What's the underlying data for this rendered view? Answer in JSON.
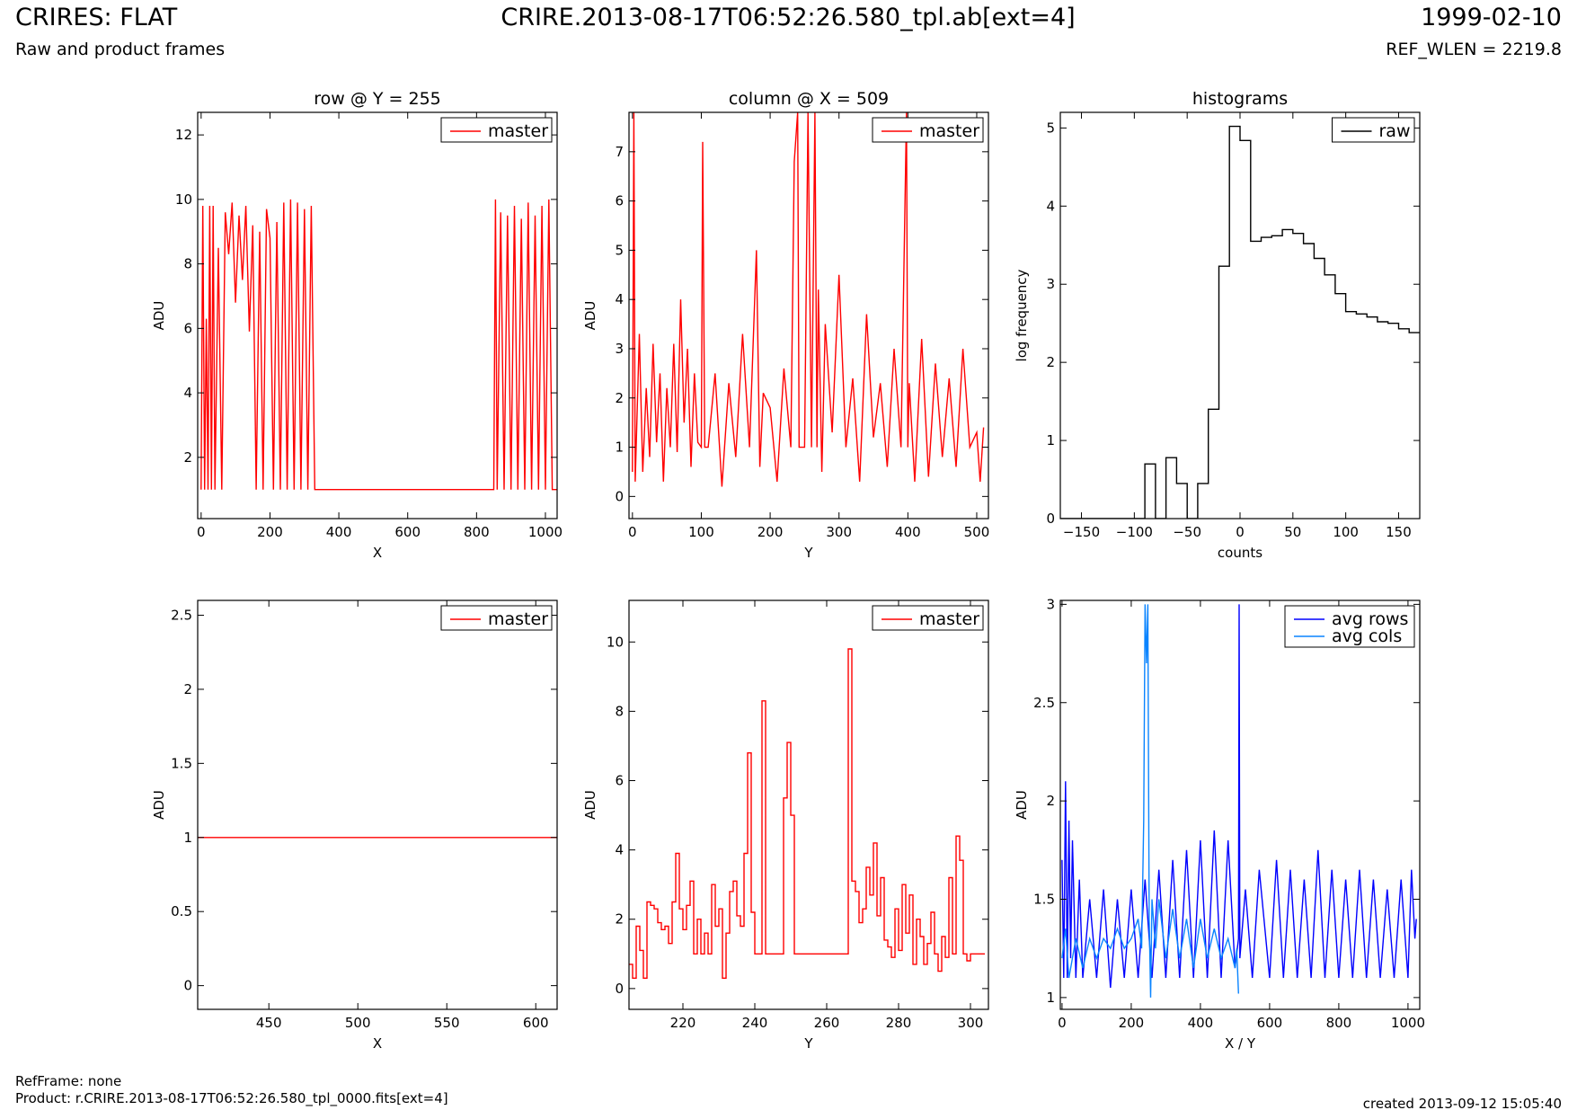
{
  "header": {
    "title_left": "CRIRES: FLAT",
    "subtitle_left": "Raw and product frames",
    "title_center": "CRIRE.2013-08-17T06:52:26.580_tpl.ab[ext=4]",
    "title_right": "1999-02-10",
    "subtitle_right": "REF_WLEN = 2219.8"
  },
  "footer": {
    "ref_frame": "RefFrame: none",
    "product": "Product: r.CRIRE.2013-08-17T06:52:26.580_tpl_0000.fits[ext=4]",
    "created": "created 2013-09-12 15:05:40"
  },
  "colors": {
    "master": "#ff0000",
    "raw": "#000000",
    "avg_rows": "#0000ff",
    "avg_cols": "#0a84ff"
  },
  "chart_data": [
    {
      "id": "row-plot",
      "type": "line",
      "title": "row @ Y = 255",
      "xlabel": "X",
      "ylabel": "ADU",
      "xlim": [
        -10,
        1034
      ],
      "ylim": [
        0.1,
        12.7
      ],
      "xticks": [
        0,
        200,
        400,
        600,
        800,
        1000
      ],
      "yticks": [
        2,
        4,
        6,
        8,
        10,
        12
      ],
      "legend": "top-right",
      "series": [
        {
          "name": "master",
          "color": "#ff0000",
          "style": "line",
          "note": "values fluctuate between 1 and ~10 for X 0-335 and 850-1010, constant 1 elsewhere",
          "x": [
            0,
            5,
            10,
            15,
            20,
            25,
            30,
            35,
            40,
            50,
            60,
            70,
            80,
            90,
            100,
            110,
            120,
            130,
            140,
            150,
            160,
            170,
            180,
            190,
            200,
            210,
            220,
            230,
            240,
            250,
            260,
            270,
            280,
            290,
            300,
            310,
            320,
            330,
            335,
            340,
            400,
            500,
            600,
            700,
            800,
            850,
            855,
            860,
            870,
            880,
            890,
            900,
            910,
            920,
            930,
            940,
            950,
            960,
            970,
            980,
            990,
            1000,
            1010,
            1020,
            1034
          ],
          "y": [
            1,
            9.8,
            1,
            6.3,
            1,
            9.8,
            1,
            9.8,
            1,
            8.5,
            1,
            9.6,
            8.3,
            9.9,
            6.8,
            9.5,
            7.5,
            9.8,
            5.9,
            9.2,
            1,
            9.0,
            1,
            9.7,
            8.8,
            1,
            9.3,
            1,
            9.9,
            1,
            10,
            1,
            9.9,
            1,
            9.7,
            1,
            9.8,
            1,
            1,
            1,
            1,
            1,
            1,
            1,
            1,
            1,
            10,
            1,
            9.6,
            1,
            9.5,
            1,
            9.8,
            1,
            9.4,
            1,
            9.9,
            1,
            9.5,
            1,
            9.8,
            1,
            10,
            1,
            1
          ]
        }
      ]
    },
    {
      "id": "column-plot",
      "type": "line",
      "title": "column @ X = 509",
      "xlabel": "Y",
      "ylabel": "ADU",
      "xlim": [
        -5,
        517
      ],
      "ylim": [
        -0.45,
        7.8
      ],
      "xticks": [
        0,
        100,
        200,
        300,
        400,
        500
      ],
      "yticks": [
        0,
        1,
        2,
        3,
        4,
        5,
        6,
        7
      ],
      "legend": "top-right",
      "series": [
        {
          "name": "master",
          "color": "#ff0000",
          "style": "line",
          "x": [
            0,
            2,
            4,
            10,
            15,
            20,
            25,
            30,
            35,
            40,
            45,
            50,
            55,
            60,
            65,
            70,
            75,
            80,
            85,
            90,
            95,
            100,
            102,
            105,
            110,
            120,
            130,
            140,
            150,
            160,
            170,
            180,
            185,
            190,
            200,
            210,
            220,
            230,
            235,
            240,
            242,
            245,
            248,
            250,
            255,
            260,
            265,
            268,
            270,
            275,
            280,
            290,
            300,
            310,
            320,
            330,
            340,
            350,
            360,
            370,
            380,
            390,
            398,
            400,
            402,
            410,
            420,
            430,
            440,
            450,
            460,
            470,
            480,
            490,
            500,
            505,
            510
          ],
          "y": [
            0.5,
            7.8,
            0.3,
            3.3,
            0.5,
            2.2,
            0.8,
            3.1,
            1.1,
            2.5,
            0.3,
            2.2,
            1.0,
            3.1,
            0.9,
            4.0,
            1.5,
            3.0,
            0.6,
            2.5,
            1.1,
            1.0,
            7.2,
            1.0,
            1.0,
            2.5,
            0.2,
            2.3,
            0.8,
            3.3,
            1.0,
            5.0,
            0.6,
            2.1,
            1.8,
            0.3,
            2.6,
            1.0,
            6.8,
            7.8,
            1.0,
            1.0,
            1.0,
            1.0,
            7.8,
            1.0,
            7.8,
            1.0,
            4.2,
            0.5,
            3.5,
            1.3,
            4.5,
            1.0,
            2.4,
            0.3,
            3.7,
            1.2,
            2.3,
            0.6,
            3.0,
            1.0,
            7.8,
            1.0,
            2.3,
            0.3,
            3.2,
            0.4,
            2.7,
            0.8,
            2.4,
            0.6,
            3.0,
            1.0,
            1.3,
            0.3,
            1.4
          ]
        }
      ]
    },
    {
      "id": "histogram-plot",
      "type": "bar",
      "title": "histograms",
      "xlabel": "counts",
      "ylabel": "log frequency",
      "xlim": [
        -170,
        170
      ],
      "ylim": [
        0,
        5.2
      ],
      "xticks": [
        -150,
        -100,
        -50,
        0,
        50,
        100,
        150
      ],
      "yticks": [
        0,
        1,
        2,
        3,
        4,
        5
      ],
      "legend": "top-right",
      "series": [
        {
          "name": "raw",
          "color": "#000000",
          "style": "step",
          "bin_width": 10,
          "bin_starts": [
            -170,
            -160,
            -150,
            -140,
            -130,
            -120,
            -110,
            -100,
            -90,
            -80,
            -70,
            -60,
            -50,
            -40,
            -30,
            -20,
            -10,
            0,
            10,
            20,
            30,
            40,
            50,
            60,
            70,
            80,
            90,
            100,
            110,
            120,
            130,
            140,
            150,
            160
          ],
          "values": [
            0,
            0,
            0,
            0,
            0,
            0,
            0,
            0,
            0.7,
            0,
            0.78,
            0.45,
            0,
            0.45,
            1.4,
            3.23,
            5.02,
            4.84,
            3.55,
            3.6,
            3.62,
            3.7,
            3.65,
            3.52,
            3.33,
            3.12,
            2.88,
            2.65,
            2.62,
            2.58,
            2.52,
            2.5,
            2.43,
            2.38
          ]
        }
      ]
    },
    {
      "id": "row-zoom-plot",
      "type": "line",
      "title": "",
      "xlabel": "X",
      "ylabel": "ADU",
      "xlim": [
        410,
        612
      ],
      "ylim": [
        -0.16,
        2.6
      ],
      "xticks": [
        450,
        500,
        550,
        600
      ],
      "yticks": [
        0.0,
        0.5,
        1.0,
        1.5,
        2.0,
        2.5
      ],
      "legend": "top-right",
      "series": [
        {
          "name": "master",
          "color": "#ff0000",
          "style": "line",
          "x": [
            410,
            612
          ],
          "y": [
            1.0,
            1.0
          ]
        }
      ]
    },
    {
      "id": "column-zoom-plot",
      "type": "line",
      "title": "",
      "xlabel": "Y",
      "ylabel": "ADU",
      "xlim": [
        205,
        305
      ],
      "ylim": [
        -0.6,
        11.2
      ],
      "xticks": [
        220,
        240,
        260,
        280,
        300
      ],
      "yticks": [
        0,
        2,
        4,
        6,
        8,
        10
      ],
      "legend": "top-right",
      "series": [
        {
          "name": "master",
          "color": "#ff0000",
          "style": "step",
          "x": [
            205,
            206,
            207,
            208,
            209,
            210,
            211,
            212,
            213,
            214,
            215,
            216,
            217,
            218,
            219,
            220,
            221,
            222,
            223,
            224,
            225,
            226,
            227,
            228,
            229,
            230,
            231,
            232,
            233,
            234,
            235,
            236,
            237,
            238,
            239,
            240,
            241,
            242,
            243,
            244,
            245,
            246,
            247,
            248,
            249,
            250,
            251,
            252,
            253,
            254,
            255,
            256,
            257,
            258,
            259,
            260,
            261,
            262,
            263,
            264,
            265,
            266,
            267,
            268,
            269,
            270,
            271,
            272,
            273,
            274,
            275,
            276,
            277,
            278,
            279,
            280,
            281,
            282,
            283,
            284,
            285,
            286,
            287,
            288,
            289,
            290,
            291,
            292,
            293,
            294,
            295,
            296,
            297,
            298,
            299,
            300,
            301,
            302,
            303,
            304
          ],
          "y": [
            0.7,
            0.3,
            1.8,
            1.1,
            0.3,
            2.5,
            2.4,
            2.3,
            1.9,
            1.7,
            1.8,
            1.3,
            2.5,
            3.9,
            2.3,
            1.7,
            2.4,
            3.1,
            1.0,
            2.0,
            1.0,
            1.6,
            1.0,
            3.0,
            1.8,
            2.3,
            0.3,
            1.6,
            2.8,
            3.1,
            2.1,
            1.8,
            3.9,
            6.8,
            2.2,
            1.0,
            1.0,
            8.3,
            1.0,
            1.0,
            1.0,
            1.0,
            1.0,
            5.5,
            7.1,
            5.0,
            1.0,
            1.0,
            1.0,
            1.0,
            1.0,
            1.0,
            1.0,
            1.0,
            1.0,
            1.0,
            1.0,
            1.0,
            1.0,
            1.0,
            1.0,
            9.8,
            3.1,
            2.8,
            1.9,
            2.3,
            3.5,
            2.7,
            4.2,
            2.1,
            3.2,
            1.4,
            1.2,
            0.9,
            2.3,
            1.1,
            3.0,
            1.6,
            2.7,
            0.7,
            2.0,
            1.5,
            0.7,
            1.3,
            2.2,
            1.0,
            0.5,
            1.5,
            0.9,
            3.2,
            1.0,
            4.4,
            3.7,
            1.0,
            0.8,
            1.0,
            1.0,
            1.0,
            1.0,
            1.0
          ]
        }
      ]
    },
    {
      "id": "average-plot",
      "type": "line",
      "title": "",
      "xlabel": "X / Y",
      "ylabel": "ADU",
      "xlim": [
        -5,
        1034
      ],
      "ylim": [
        0.94,
        3.02
      ],
      "xticks": [
        0,
        200,
        400,
        600,
        800,
        1000
      ],
      "yticks": [
        1.0,
        1.5,
        2.0,
        2.5,
        3.0
      ],
      "legend": "top-right",
      "series": [
        {
          "name": "avg rows",
          "color": "#0000ff",
          "style": "line",
          "note": "oscillates roughly between 1.05 and 1.7 across X 0-1024, with spikes near X=10 (2.1) and X=512 (3.0)",
          "x": [
            0,
            5,
            10,
            15,
            20,
            25,
            30,
            40,
            50,
            60,
            80,
            100,
            120,
            140,
            160,
            180,
            200,
            220,
            240,
            260,
            280,
            300,
            320,
            340,
            360,
            380,
            400,
            420,
            440,
            460,
            480,
            500,
            510,
            512,
            514,
            530,
            550,
            570,
            600,
            620,
            640,
            660,
            680,
            700,
            720,
            740,
            760,
            780,
            800,
            820,
            840,
            860,
            880,
            900,
            920,
            940,
            960,
            980,
            1000,
            1010,
            1020,
            1024
          ],
          "y": [
            1.7,
            1.1,
            2.1,
            1.1,
            1.9,
            1.2,
            1.8,
            1.1,
            1.6,
            1.1,
            1.5,
            1.1,
            1.55,
            1.05,
            1.5,
            1.1,
            1.55,
            1.1,
            1.6,
            1.1,
            1.65,
            1.1,
            1.7,
            1.1,
            1.75,
            1.1,
            1.8,
            1.1,
            1.85,
            1.1,
            1.8,
            1.15,
            1.3,
            3.0,
            1.2,
            1.55,
            1.1,
            1.65,
            1.1,
            1.7,
            1.1,
            1.65,
            1.1,
            1.6,
            1.1,
            1.75,
            1.1,
            1.65,
            1.1,
            1.6,
            1.1,
            1.65,
            1.1,
            1.6,
            1.1,
            1.55,
            1.1,
            1.6,
            1.1,
            1.65,
            1.3,
            1.4
          ]
        },
        {
          "name": "avg cols",
          "color": "#0a84ff",
          "style": "line",
          "note": "noisy around 1.2-1.45 for Y 0-510, with a spike near Y=240-250 reaching 3.0",
          "x": [
            0,
            10,
            20,
            40,
            60,
            80,
            100,
            120,
            140,
            160,
            180,
            200,
            220,
            230,
            236,
            240,
            244,
            248,
            252,
            256,
            260,
            270,
            280,
            300,
            320,
            340,
            360,
            380,
            400,
            420,
            440,
            460,
            480,
            500,
            505,
            510
          ],
          "y": [
            1.2,
            1.35,
            1.1,
            1.3,
            1.15,
            1.3,
            1.2,
            1.3,
            1.25,
            1.35,
            1.25,
            1.3,
            1.4,
            1.25,
            1.9,
            3.0,
            2.7,
            3.0,
            1.4,
            1.0,
            1.5,
            1.25,
            1.5,
            1.2,
            1.45,
            1.2,
            1.4,
            1.15,
            1.4,
            1.2,
            1.35,
            1.2,
            1.3,
            1.15,
            1.25,
            1.02
          ]
        }
      ]
    }
  ]
}
